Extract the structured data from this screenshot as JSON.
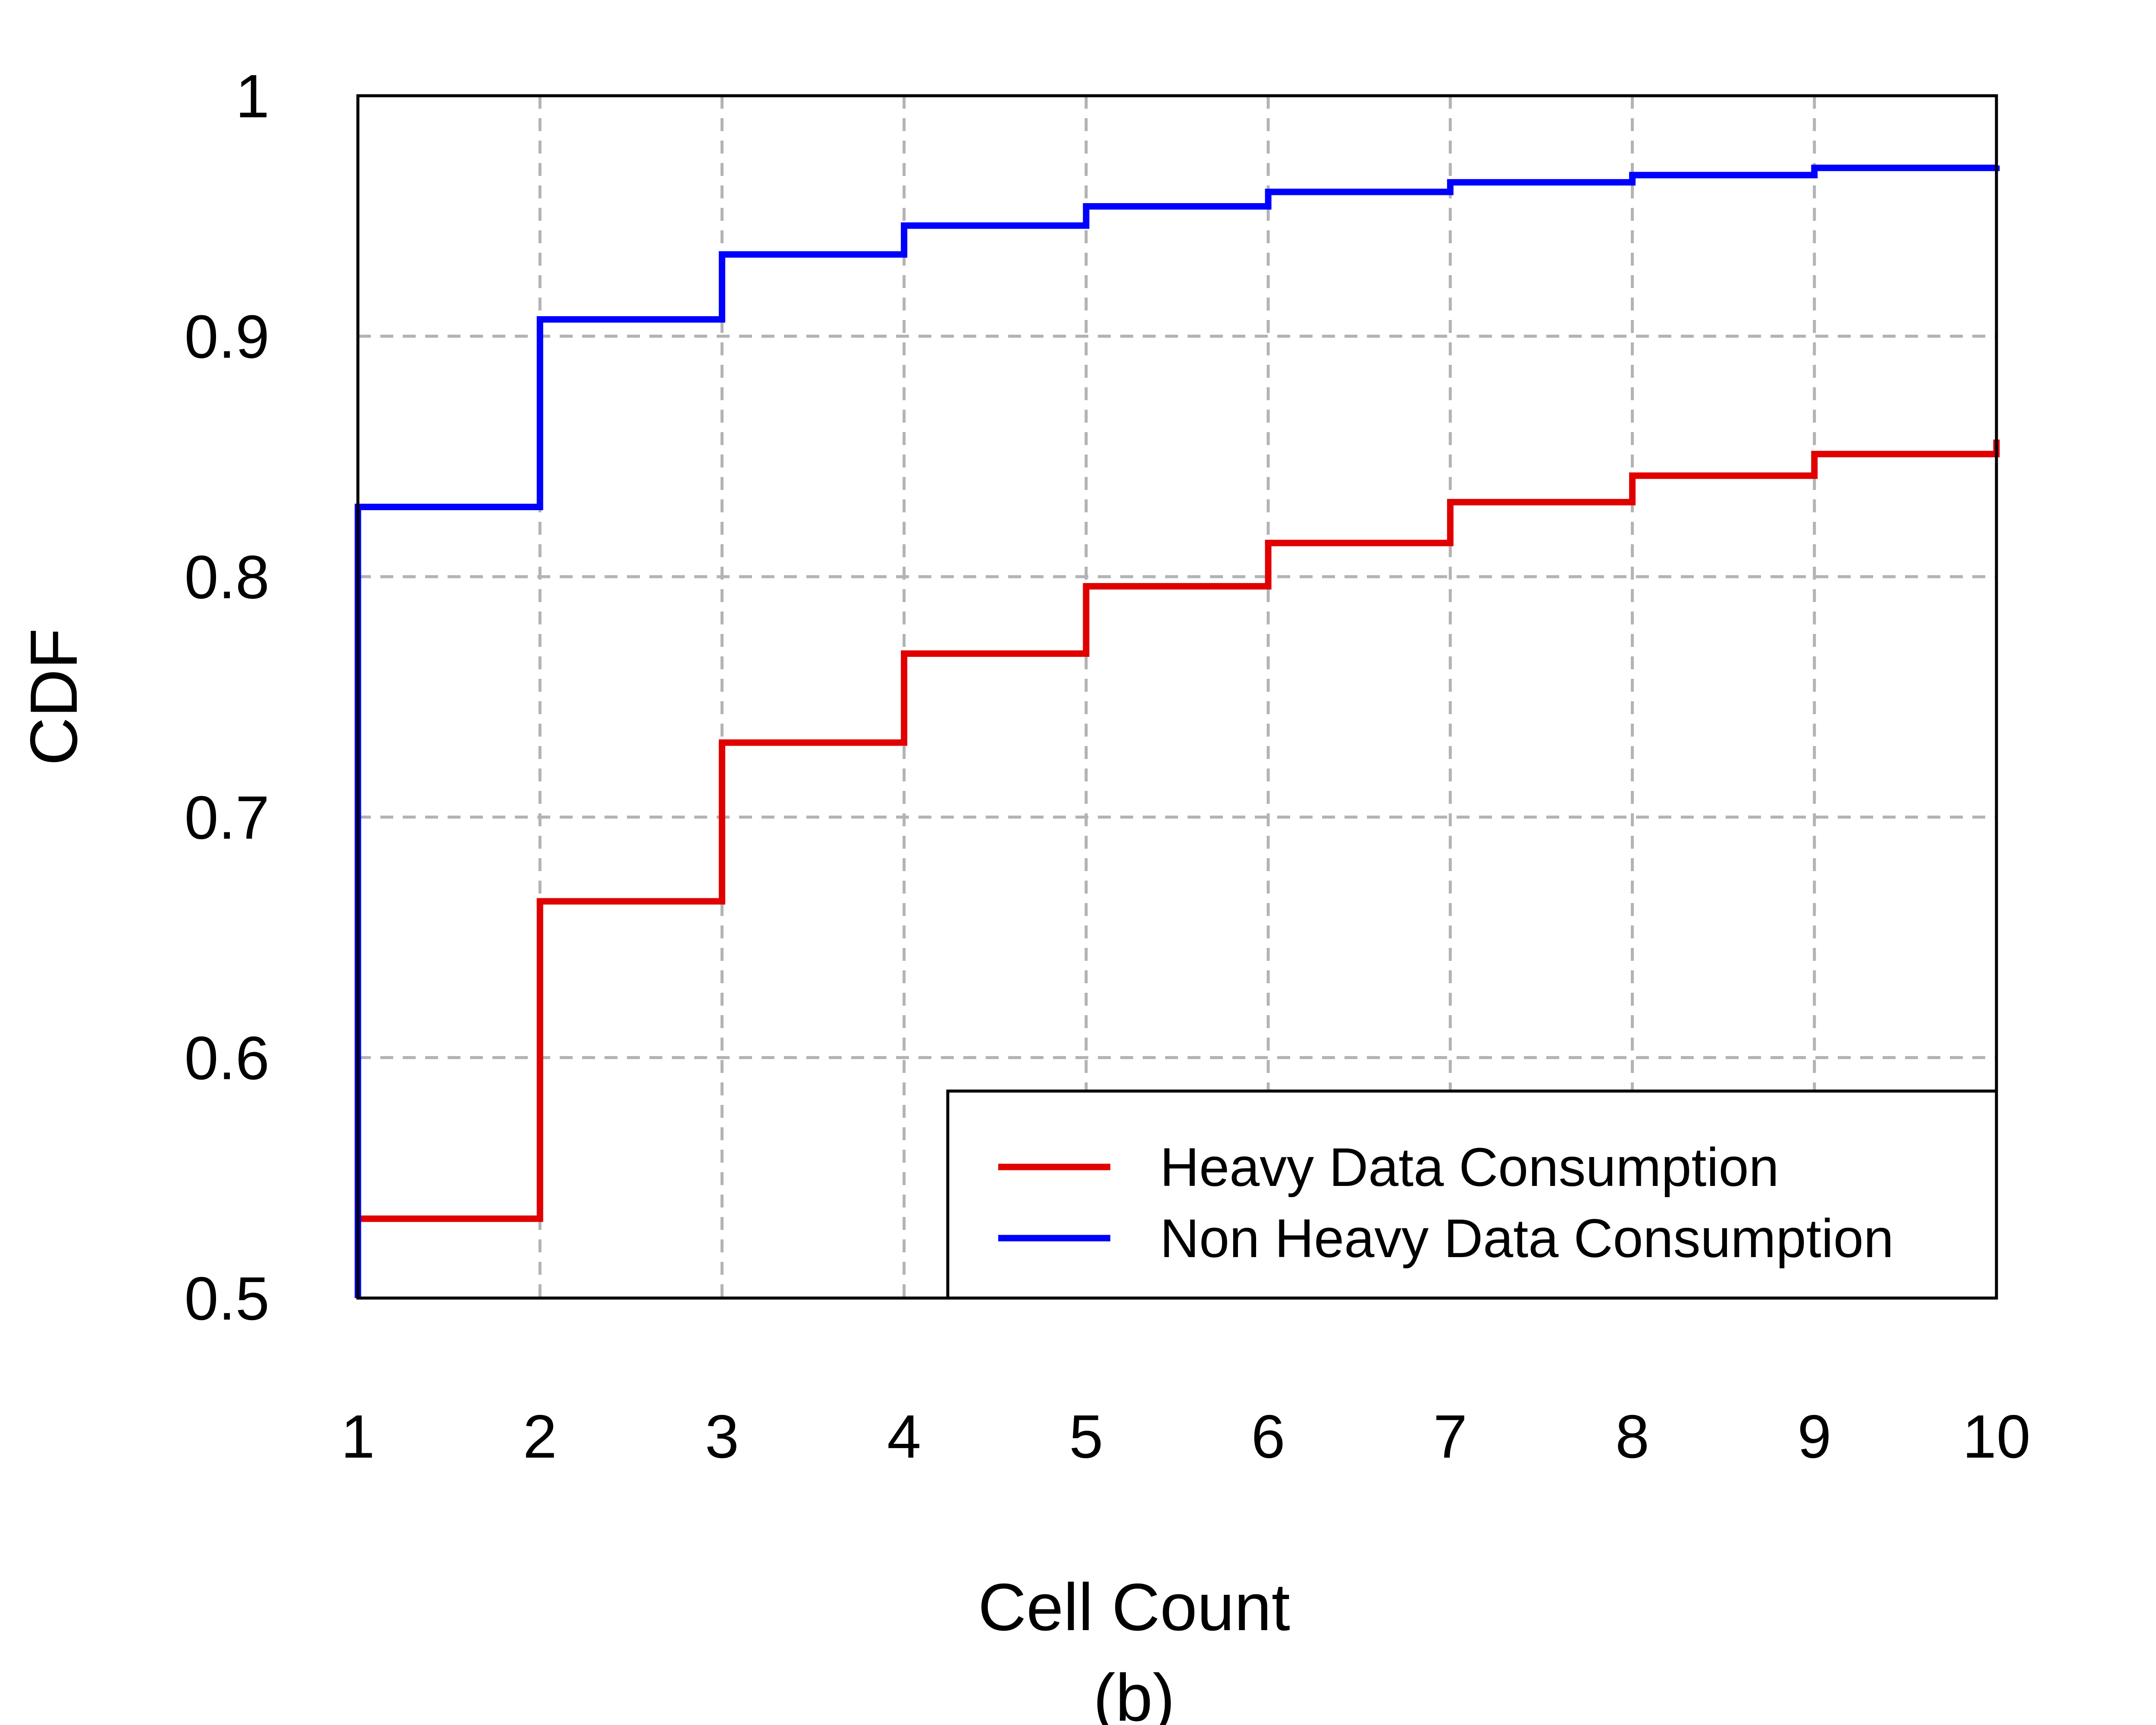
{
  "chart_data": {
    "type": "line",
    "step": true,
    "xlabel": "Cell Count",
    "ylabel": "CDF",
    "caption": "(b)",
    "xlim": [
      1,
      10
    ],
    "ylim": [
      0.5,
      1
    ],
    "x_ticks": [
      "1",
      "2",
      "3",
      "4",
      "5",
      "6",
      "7",
      "8",
      "9",
      "10"
    ],
    "y_ticks": [
      "0.5",
      "0.6",
      "0.7",
      "0.8",
      "0.9",
      "1"
    ],
    "grid": true,
    "legend_position": "bottom-right",
    "x": [
      1,
      2,
      3,
      4,
      5,
      6,
      7,
      8,
      9,
      10
    ],
    "series": [
      {
        "name": "Heavy Data Consumption",
        "color": "#e00000",
        "values": [
          0.533,
          0.665,
          0.731,
          0.768,
          0.796,
          0.814,
          0.831,
          0.842,
          0.851,
          0.857
        ]
      },
      {
        "name": "Non Heavy Data Consumption",
        "color": "#0000ff",
        "values": [
          0.829,
          0.907,
          0.934,
          0.946,
          0.954,
          0.96,
          0.964,
          0.967,
          0.97,
          0.971
        ]
      }
    ]
  }
}
